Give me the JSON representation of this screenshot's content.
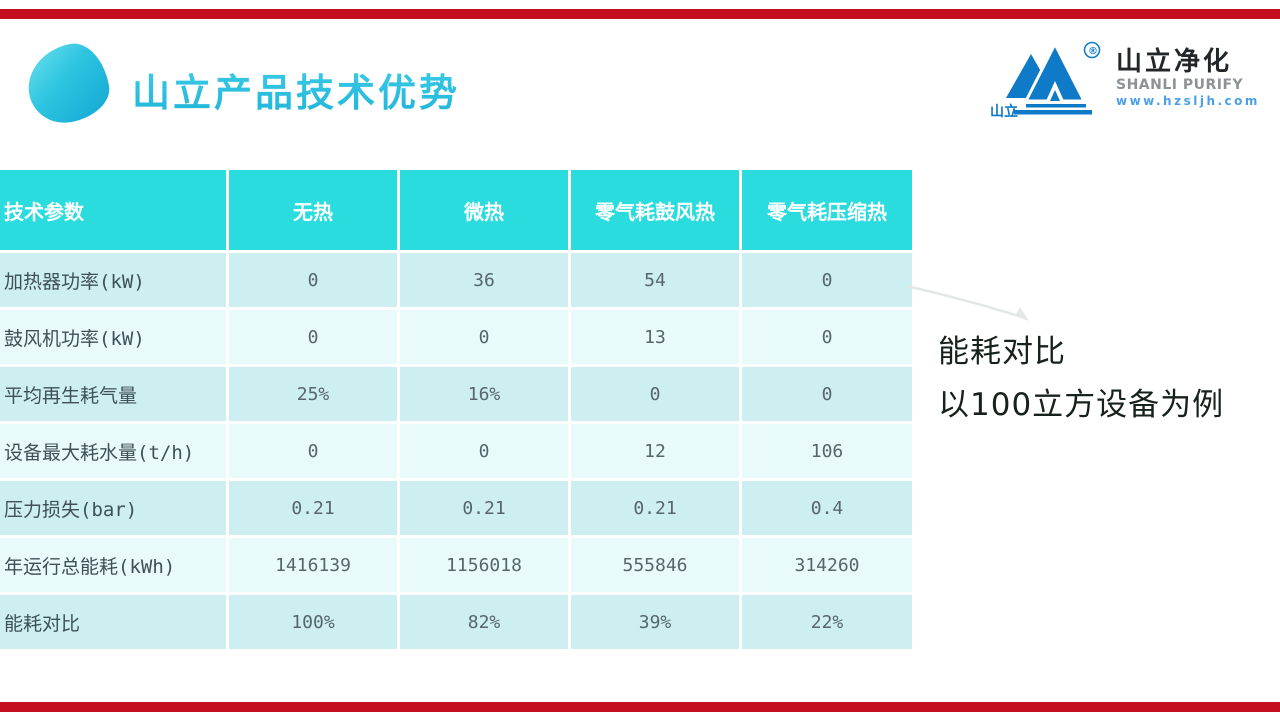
{
  "slide": {
    "title": "山立产品技术优势",
    "annotation": {
      "line1": "能耗对比",
      "line2": "以100立方设备为例"
    }
  },
  "logo": {
    "mark_label": "山立",
    "registered_mark": "®",
    "company_cn": "山立净化",
    "company_en": "SHANLI PURIFY",
    "website": "www.hzsljh.com"
  },
  "colors": {
    "accent_red": "#C20E1E",
    "header_teal": "#2BDCDE",
    "row_odd": "#CDEFF2",
    "row_even": "#E9FAFB",
    "title_cyan": "#29BFE0",
    "logo_blue": "#0E7AC8",
    "annotation_text": "#17221C"
  },
  "chart_data": {
    "type": "table",
    "title": "山立产品技术优势",
    "columns": [
      "技术参数",
      "无热",
      "微热",
      "零气耗鼓风热",
      "零气耗压缩热"
    ],
    "rows": [
      {
        "label": "加热器功率(kW)",
        "values": [
          "0",
          "36",
          "54",
          "0"
        ]
      },
      {
        "label": "鼓风机功率(kW)",
        "values": [
          "0",
          "0",
          "13",
          "0"
        ]
      },
      {
        "label": "平均再生耗气量",
        "values": [
          "25%",
          "16%",
          "0",
          "0"
        ]
      },
      {
        "label": "设备最大耗水量(t/h)",
        "values": [
          "0",
          "0",
          "12",
          "106"
        ]
      },
      {
        "label": "压力损失(bar)",
        "values": [
          "0.21",
          "0.21",
          "0.21",
          "0.4"
        ]
      },
      {
        "label": "年运行总能耗(kWh)",
        "values": [
          "1416139",
          "1156018",
          "555846",
          "314260"
        ]
      },
      {
        "label": "能耗对比",
        "values": [
          "100%",
          "82%",
          "39%",
          "22%"
        ]
      }
    ]
  }
}
